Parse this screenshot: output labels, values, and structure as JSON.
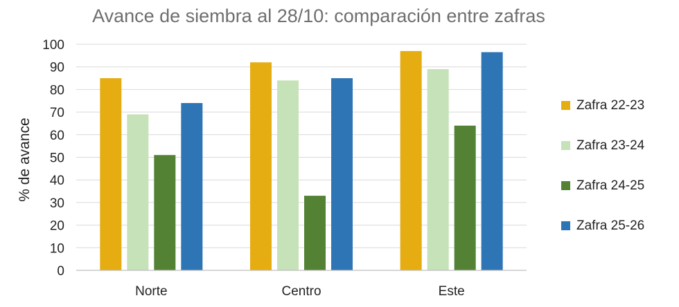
{
  "chart_data": {
    "type": "bar",
    "title": "Avance de siembra al 28/10: comparación entre zafras",
    "xlabel": "",
    "ylabel": "% de avance",
    "ylim": [
      0,
      100
    ],
    "yticks": [
      0,
      10,
      20,
      30,
      40,
      50,
      60,
      70,
      80,
      90,
      100
    ],
    "grid": true,
    "legend_position": "right",
    "categories": [
      "Norte",
      "Centro",
      "Este"
    ],
    "series": [
      {
        "name": "Zafra 22-23",
        "color": "#e5ad12",
        "values": [
          85,
          92,
          97
        ]
      },
      {
        "name": "Zafra 23-24",
        "color": "#c6e2b8",
        "values": [
          69,
          84,
          89
        ]
      },
      {
        "name": "Zafra 24-25",
        "color": "#538235",
        "values": [
          51,
          33,
          64
        ]
      },
      {
        "name": "Zafra 25-26",
        "color": "#2e75b6",
        "values": [
          74,
          85,
          96.5
        ]
      }
    ]
  }
}
